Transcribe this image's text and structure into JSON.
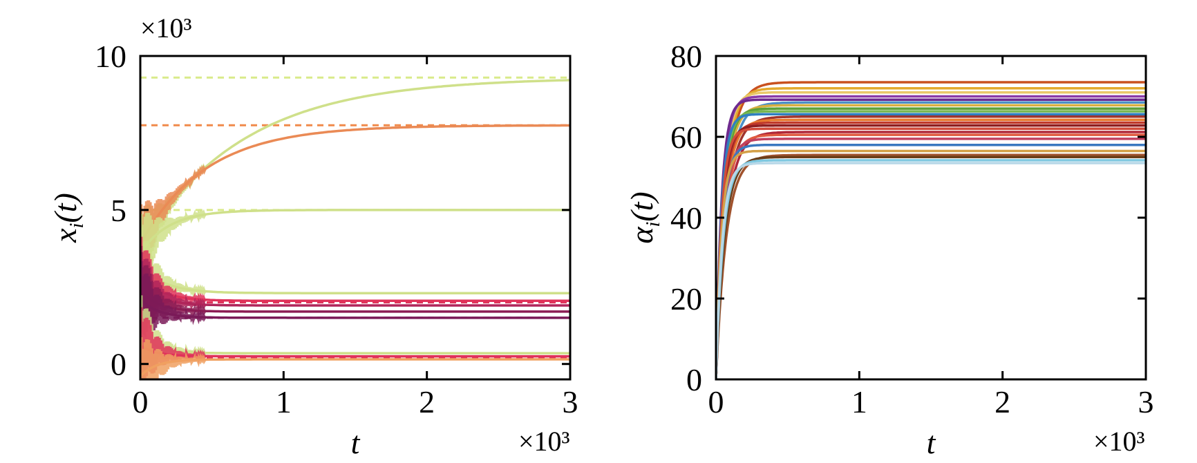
{
  "chart_data": [
    {
      "type": "line",
      "panel": "left",
      "xlabel_main": "t",
      "xlabel_sub": "",
      "ylabel_main": "x",
      "ylabel_sub": "i",
      "ylabel_arg": "(t)",
      "x_multiplier": "×10³",
      "y_multiplier": "×10³",
      "xlim": [
        0,
        3
      ],
      "ylim": [
        -0.5,
        10
      ],
      "xticks": [
        0,
        1,
        2,
        3
      ],
      "xtick_labels": [
        "0",
        "1",
        "2",
        "3"
      ],
      "yticks": [
        0,
        5,
        10
      ],
      "ytick_labels": [
        "0",
        "5",
        "10"
      ],
      "grid": false,
      "legend": "none",
      "equilibria": [
        {
          "y": 9.3,
          "color": "#d9ea8a"
        },
        {
          "y": 7.75,
          "color": "#f08a4b"
        },
        {
          "y": 5.0,
          "color": "#d9ea8a"
        },
        {
          "y": 2.0,
          "color": "#e0325a"
        },
        {
          "y": 1.5,
          "color": "#7a1a58"
        },
        {
          "y": 0.2,
          "color": "#e0325a"
        }
      ],
      "series": [
        {
          "start": 3.8,
          "final": 9.3,
          "rate": 1.4,
          "color": "#cfe08a"
        },
        {
          "start": 3.9,
          "final": 7.75,
          "rate": 2.2,
          "color": "#ea8a55"
        },
        {
          "start": 3.6,
          "final": 5.0,
          "rate": 5.0,
          "color": "#cfe08a"
        },
        {
          "start": 3.2,
          "final": 2.3,
          "rate": 6.0,
          "color": "#cfe08a"
        },
        {
          "start": 2.9,
          "final": 2.05,
          "rate": 7.0,
          "color": "#e0325a"
        },
        {
          "start": 2.6,
          "final": 1.9,
          "rate": 7.5,
          "color": "#b0255a"
        },
        {
          "start": 2.4,
          "final": 1.7,
          "rate": 8.0,
          "color": "#8c1c54"
        },
        {
          "start": 2.1,
          "final": 1.5,
          "rate": 8.0,
          "color": "#7a1a58"
        },
        {
          "start": 1.0,
          "final": 0.35,
          "rate": 9.0,
          "color": "#cfe08a"
        },
        {
          "start": 0.6,
          "final": 0.25,
          "rate": 9.0,
          "color": "#e0325a"
        },
        {
          "start": -0.4,
          "final": 0.15,
          "rate": 9.0,
          "color": "#f0a060"
        }
      ]
    },
    {
      "type": "line",
      "panel": "right",
      "xlabel_main": "t",
      "ylabel_main": "α",
      "ylabel_sub": "i",
      "ylabel_arg": "(t)",
      "x_multiplier": "×10³",
      "xlim": [
        0,
        3
      ],
      "ylim": [
        0,
        80
      ],
      "xticks": [
        0,
        1,
        2,
        3
      ],
      "xtick_labels": [
        "0",
        "1",
        "2",
        "3"
      ],
      "yticks": [
        0,
        20,
        40,
        60,
        80
      ],
      "ytick_labels": [
        "0",
        "20",
        "40",
        "60",
        "80"
      ],
      "grid": false,
      "legend": "none",
      "series": [
        {
          "final": 73.5,
          "color": "#c9511f"
        },
        {
          "final": 72.0,
          "color": "#e3a92e"
        },
        {
          "final": 71.0,
          "color": "#e9c86a"
        },
        {
          "final": 70.0,
          "color": "#8a3aa8"
        },
        {
          "final": 69.2,
          "color": "#6e2a8e"
        },
        {
          "final": 68.5,
          "color": "#4b90c8"
        },
        {
          "final": 67.8,
          "color": "#d8b040"
        },
        {
          "final": 67.0,
          "color": "#5aa03a"
        },
        {
          "final": 66.3,
          "color": "#78b850"
        },
        {
          "final": 65.6,
          "color": "#2f7fc0"
        },
        {
          "final": 65.0,
          "color": "#a0342c"
        },
        {
          "final": 64.2,
          "color": "#e87a30"
        },
        {
          "final": 63.5,
          "color": "#c0392b"
        },
        {
          "final": 62.8,
          "color": "#8e1e20"
        },
        {
          "final": 62.0,
          "color": "#d24b3a"
        },
        {
          "final": 61.2,
          "color": "#b0283a"
        },
        {
          "final": 60.5,
          "color": "#e05a40"
        },
        {
          "final": 59.5,
          "color": "#c04060"
        },
        {
          "final": 58.0,
          "color": "#3a78c0"
        },
        {
          "final": 56.5,
          "color": "#d4a048"
        },
        {
          "final": 55.5,
          "color": "#a0522d"
        },
        {
          "final": 55.0,
          "color": "#6a3e1a"
        },
        {
          "final": 54.2,
          "color": "#7ec8e0"
        },
        {
          "final": 53.5,
          "color": "#b8d8e8"
        }
      ]
    }
  ]
}
